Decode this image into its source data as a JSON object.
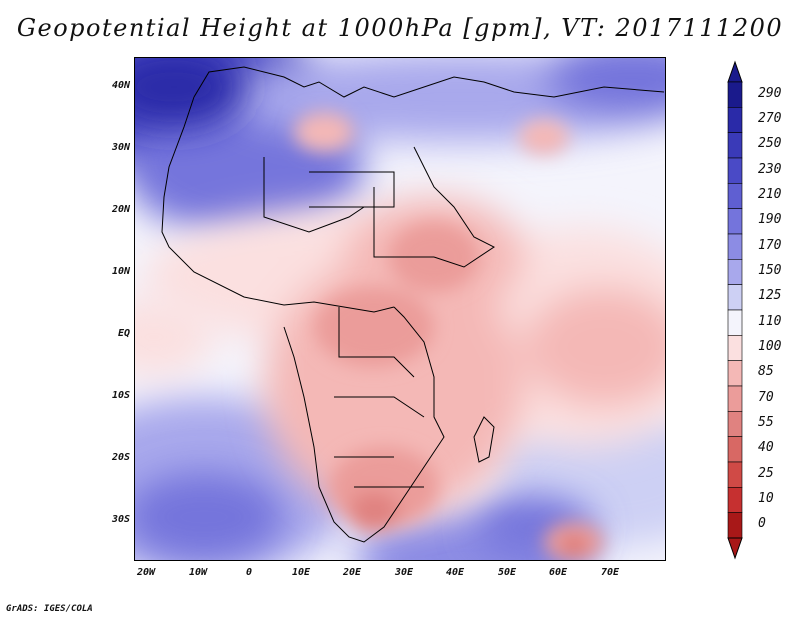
{
  "title": "Geopotential Height at 1000hPa [gpm], VT: 2017111200",
  "credit": "GrADS: IGES/COLA",
  "lat_labels": [
    "40N",
    "30N",
    "20N",
    "10N",
    "EQ",
    "10S",
    "20S",
    "30S"
  ],
  "lon_labels": [
    "20W",
    "10W",
    "0",
    "10E",
    "20E",
    "30E",
    "40E",
    "50E",
    "60E",
    "70E"
  ],
  "colorbar": {
    "labels": [
      "290",
      "270",
      "250",
      "230",
      "210",
      "190",
      "170",
      "150",
      "125",
      "110",
      "100",
      "85",
      "70",
      "55",
      "40",
      "25",
      "10",
      "0"
    ],
    "colors": [
      "#1a1a8c",
      "#2a2aa8",
      "#3a3ab8",
      "#4a4ac6",
      "#5f5fd2",
      "#7474dc",
      "#8c8ce4",
      "#a8a8ec",
      "#cdd0f4",
      "#f4f4fc",
      "#fbe0e0",
      "#f4b8b6",
      "#eb9c9a",
      "#e08280",
      "#d86864",
      "#d04a46",
      "#c63030",
      "#a81818"
    ]
  },
  "map": {
    "projection": "lat-lon",
    "lon_range": [
      -23,
      80
    ],
    "lat_range": [
      -37,
      45
    ],
    "variable": "geopotential height 1000hPa"
  }
}
